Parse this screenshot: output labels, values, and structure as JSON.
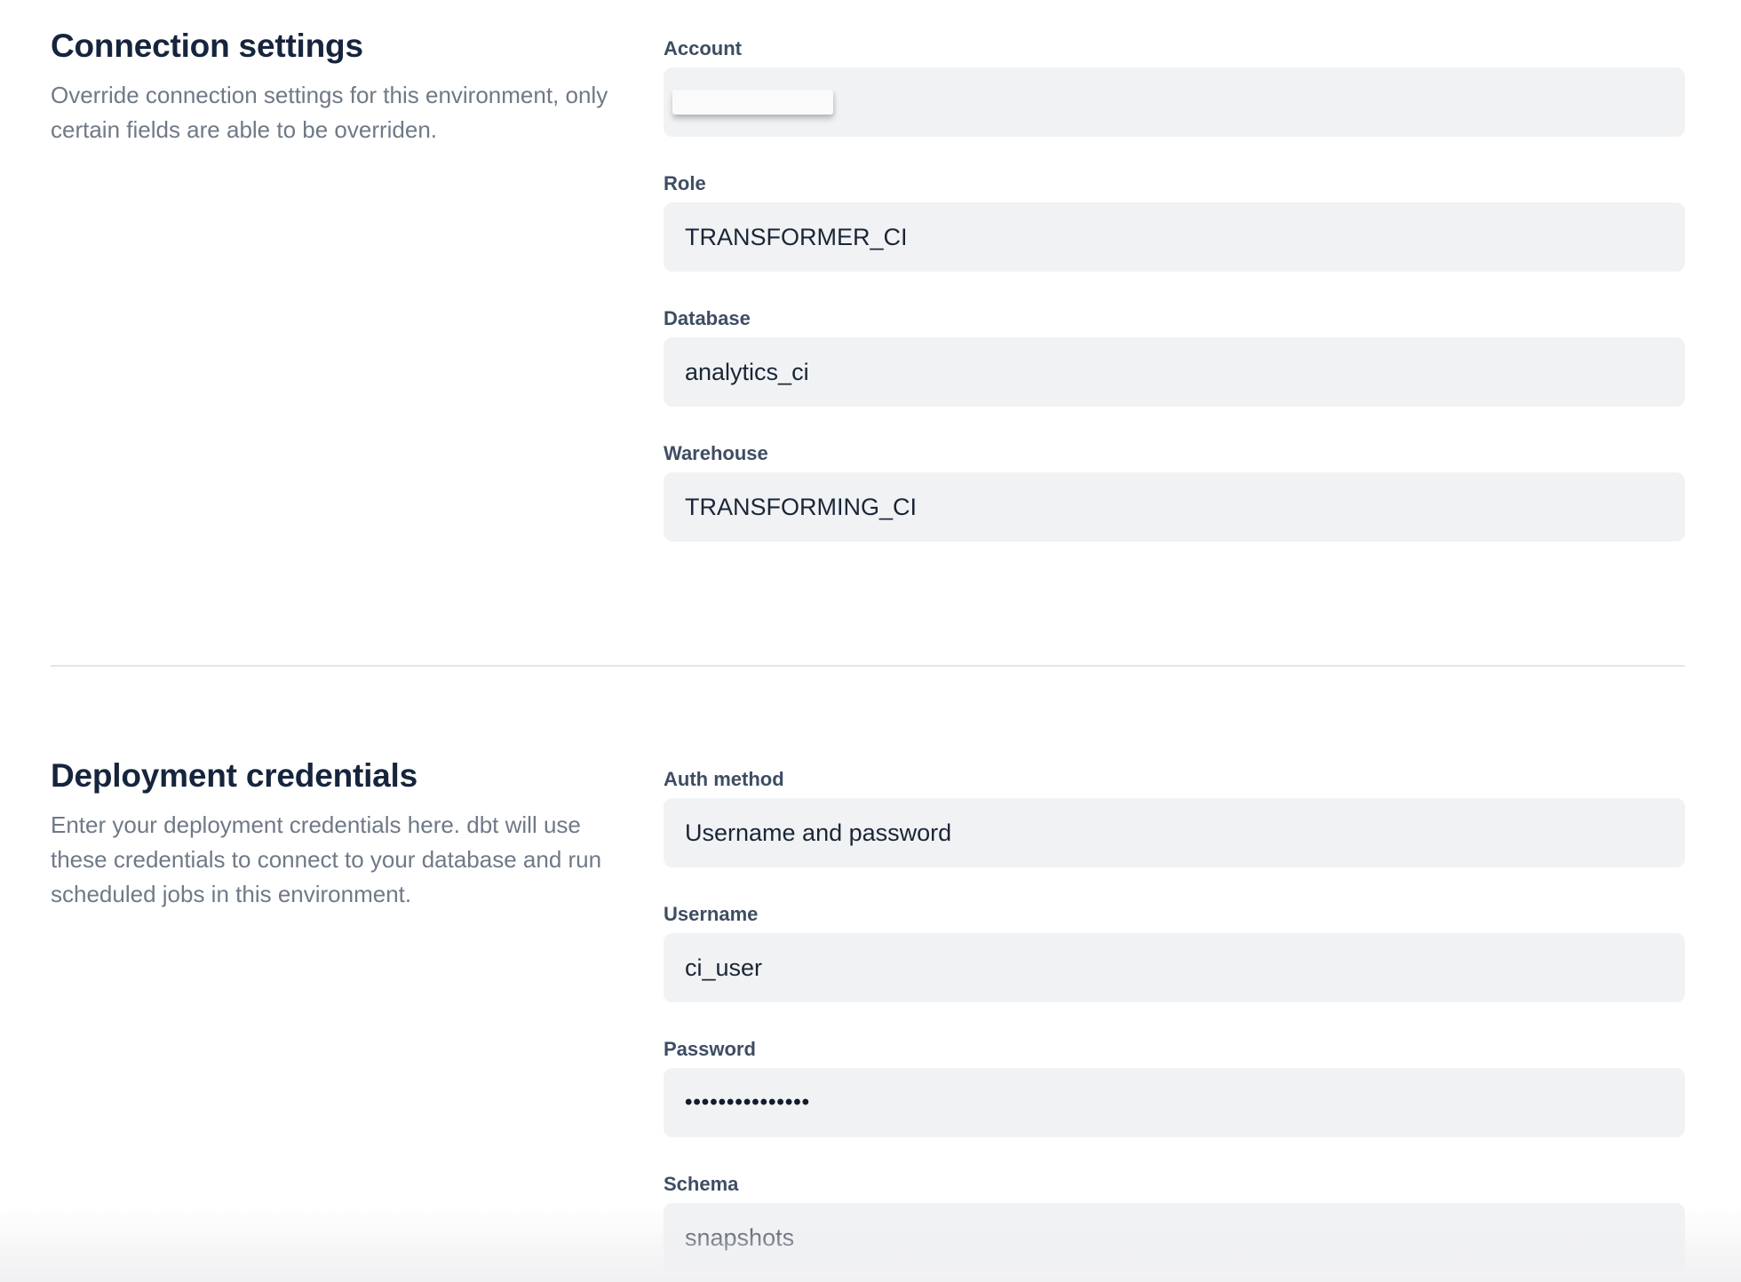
{
  "colors": {
    "heading": "#16253d",
    "label": "#3e4d63",
    "value": "#1a2636",
    "description": "#6f7987",
    "input_background": "#f1f2f4",
    "divider": "#e4e4ea",
    "page_background": "#ffffff"
  },
  "sections": [
    {
      "id": "connection-settings",
      "title": "Connection settings",
      "description": "Override connection settings for this environment, only certain fields are able to be overriden.",
      "fields": [
        {
          "label": "Account",
          "value": "",
          "redacted": true
        },
        {
          "label": "Role",
          "value": "TRANSFORMER_CI"
        },
        {
          "label": "Database",
          "value": "analytics_ci"
        },
        {
          "label": "Warehouse",
          "value": "TRANSFORMING_CI"
        }
      ]
    },
    {
      "id": "deployment-credentials",
      "title": "Deployment credentials",
      "description": "Enter your deployment credentials here. dbt will use these credentials to connect to your database and run scheduled jobs in this environment.",
      "fields": [
        {
          "label": "Auth method",
          "value": "Username and password"
        },
        {
          "label": "Username",
          "value": "ci_user"
        },
        {
          "label": "Password",
          "value": "•••••••••••••••",
          "type": "password"
        },
        {
          "label": "Schema",
          "value": "snapshots"
        }
      ]
    }
  ]
}
